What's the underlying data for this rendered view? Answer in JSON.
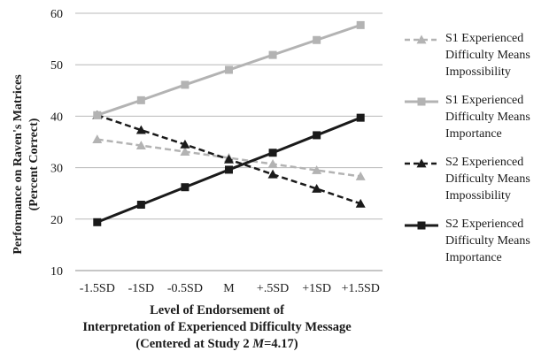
{
  "chart_data": {
    "type": "line",
    "ylabel_line1": "Performance on Raven's Matrices",
    "ylabel_line2": "(Percent Correct)",
    "xlabel_line1": "Level of Endorsement of",
    "xlabel_line2": "Interpretation of Experienced Difficulty Message",
    "xlabel_line3_pre": "(Centered at Study 2 ",
    "xlabel_line3_italic": "M",
    "xlabel_line3_post": "=4.17)",
    "categories": [
      "-1.5SD",
      "-1SD",
      "-0.5SD",
      "M",
      "+.5SD",
      "+1SD",
      "+1.5SD"
    ],
    "yticks": [
      "10",
      "20",
      "30",
      "40",
      "50",
      "60"
    ],
    "ylim": [
      10,
      60
    ],
    "grid": true,
    "legend_position": "right",
    "series": [
      {
        "name_lines": [
          "S1 Experienced",
          "Difficulty Means",
          "Impossibility"
        ],
        "color": "#b3b3b3",
        "dashed": true,
        "marker": "triangle",
        "values": [
          35.5,
          34.3,
          33.1,
          31.9,
          30.7,
          29.5,
          28.3
        ]
      },
      {
        "name_lines": [
          "S1 Experienced",
          "Difficulty Means",
          "Importance"
        ],
        "color": "#b3b3b3",
        "dashed": false,
        "marker": "square",
        "values": [
          40.2,
          43.1,
          46.1,
          49.0,
          51.9,
          54.8,
          57.7
        ]
      },
      {
        "name_lines": [
          "S2 Experienced",
          "Difficulty Means",
          "Impossibility"
        ],
        "color": "#1a1a1a",
        "dashed": true,
        "marker": "triangle",
        "values": [
          40.2,
          37.3,
          34.5,
          31.6,
          28.7,
          25.9,
          23.0
        ]
      },
      {
        "name_lines": [
          "S2 Experienced",
          "Difficulty Means",
          "Importance"
        ],
        "color": "#1a1a1a",
        "dashed": false,
        "marker": "square",
        "values": [
          19.4,
          22.8,
          26.2,
          29.6,
          32.9,
          36.3,
          39.7
        ]
      }
    ]
  }
}
